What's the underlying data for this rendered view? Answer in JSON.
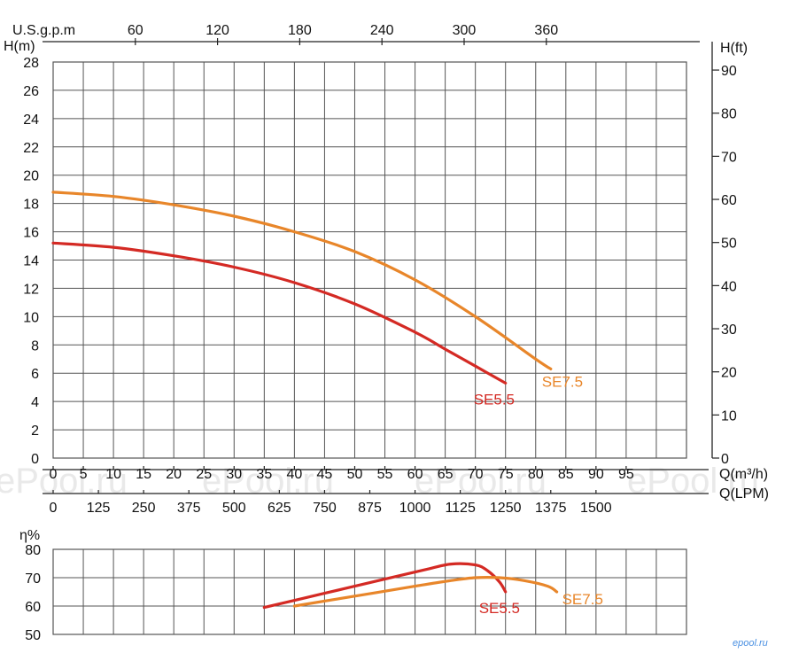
{
  "watermarks": [
    "ePool.ru",
    "ePool.ru",
    "ePool.ru",
    "ePool.ru"
  ],
  "brand_mark": "epool.ru",
  "colors": {
    "SE5.5": "#d42a24",
    "SE7.5": "#e8862a",
    "grid": "#555555"
  },
  "chart_data": [
    {
      "type": "line",
      "xlabel": "Q(m³/h)",
      "xlabel2": "Q(LPM)",
      "xlabel_top": "U.S.g.p.m",
      "ylabel": "H(m)",
      "ylabel_right": "H(ft)",
      "xlim": [
        0,
        105
      ],
      "ylim": [
        0,
        28
      ],
      "x_ticks": [
        0,
        5,
        10,
        15,
        20,
        25,
        30,
        35,
        40,
        45,
        50,
        55,
        60,
        65,
        70,
        75,
        80,
        85,
        90,
        95
      ],
      "lpm_ticks": [
        "0",
        "125",
        "250",
        "375",
        "500",
        "625",
        "750",
        "875",
        "1000",
        "1125",
        "1250",
        "1375",
        "1500"
      ],
      "gpm_ticks": [
        "60",
        "120",
        "180",
        "240",
        "300",
        "360"
      ],
      "y_ticks": [
        0,
        2,
        4,
        6,
        8,
        10,
        12,
        14,
        16,
        18,
        20,
        22,
        24,
        26,
        28
      ],
      "ft_ticks": [
        "0",
        "10",
        "20",
        "30",
        "40",
        "50",
        "60",
        "70",
        "80",
        "90"
      ],
      "grid": true,
      "series": [
        {
          "name": "SE5.5",
          "x": [
            0,
            10,
            20,
            30,
            40,
            50,
            60,
            65,
            70,
            75
          ],
          "y": [
            15.2,
            14.9,
            14.3,
            13.5,
            12.4,
            10.9,
            8.9,
            7.7,
            6.5,
            5.3
          ]
        },
        {
          "name": "SE7.5",
          "x": [
            0,
            10,
            20,
            30,
            40,
            50,
            60,
            70,
            80,
            82.5
          ],
          "y": [
            18.8,
            18.5,
            17.9,
            17.1,
            16.0,
            14.6,
            12.6,
            10.0,
            7.0,
            6.3
          ]
        }
      ]
    },
    {
      "type": "line",
      "ylabel": "η%",
      "xlim": [
        0,
        105
      ],
      "ylim": [
        50,
        80
      ],
      "y_ticks": [
        50,
        60,
        70,
        80
      ],
      "grid": true,
      "series": [
        {
          "name": "SE5.5",
          "x": [
            35,
            45,
            55,
            62,
            66,
            70,
            72,
            74,
            75
          ],
          "y": [
            59.5,
            64.5,
            69.5,
            73,
            74.8,
            74.5,
            72.5,
            68.5,
            65
          ]
        },
        {
          "name": "SE7.5",
          "x": [
            40,
            50,
            60,
            66,
            70,
            74,
            78,
            82,
            83.5
          ],
          "y": [
            60,
            63.5,
            67,
            69,
            70,
            70,
            69,
            67,
            65
          ]
        }
      ]
    }
  ]
}
